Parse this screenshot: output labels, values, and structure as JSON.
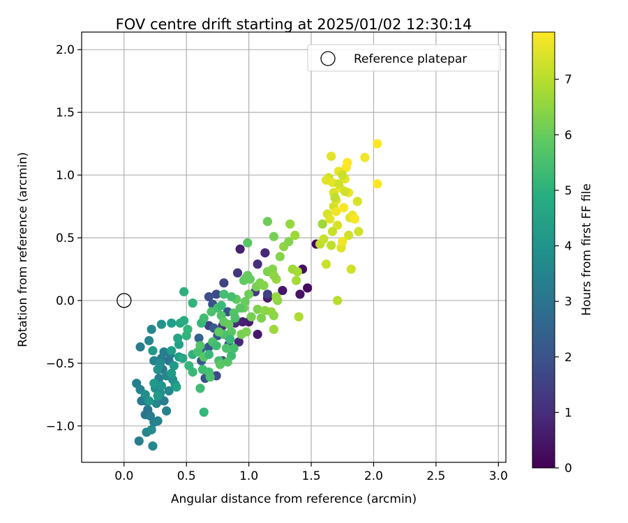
{
  "chart_data": {
    "type": "scatter",
    "title": "FOV centre drift starting at 2025/01/02 12:30:14",
    "xlabel": "Angular distance from reference (arcmin)",
    "ylabel": "Rotation from reference (arcmin)",
    "xlim": [
      -0.34,
      3.06
    ],
    "ylim": [
      -1.29,
      2.14
    ],
    "xticks": [
      0.0,
      0.5,
      1.0,
      1.5,
      2.0,
      2.5,
      3.0
    ],
    "yticks": [
      -1.0,
      -0.5,
      0.0,
      0.5,
      1.0,
      1.5,
      2.0
    ],
    "xtick_labels": [
      "0.0",
      "0.5",
      "1.0",
      "1.5",
      "2.0",
      "2.5",
      "3.0"
    ],
    "ytick_labels": [
      "−1.0",
      "−0.5",
      "0.0",
      "0.5",
      "1.0",
      "1.5",
      "2.0"
    ],
    "grid": true,
    "legend": {
      "position": "top-right",
      "label": "Reference platepar"
    },
    "reference_point": {
      "x": 0.0,
      "y": 0.0
    },
    "colorbar": {
      "label": "Hours from first FF file",
      "range": [
        0,
        7.85
      ],
      "ticks": [
        0,
        1,
        2,
        3,
        4,
        5,
        6,
        7
      ],
      "tick_labels": [
        "0",
        "1",
        "2",
        "3",
        "4",
        "5",
        "6",
        "7"
      ],
      "colormap": "viridis"
    },
    "points": [
      {
        "x": 1.54,
        "y": 0.45,
        "c": 0.2
      },
      {
        "x": 1.43,
        "y": 0.25,
        "c": 0.3
      },
      {
        "x": 1.47,
        "y": 0.1,
        "c": 0.2
      },
      {
        "x": 1.41,
        "y": 0.05,
        "c": 0.4
      },
      {
        "x": 1.27,
        "y": 0.08,
        "c": 0.5
      },
      {
        "x": 1.15,
        "y": 0.02,
        "c": 0.6
      },
      {
        "x": 1.07,
        "y": -0.27,
        "c": 0.5
      },
      {
        "x": 1.0,
        "y": -0.17,
        "c": 0.6
      },
      {
        "x": 0.95,
        "y": -0.17,
        "c": 0.7
      },
      {
        "x": 0.93,
        "y": 0.41,
        "c": 0.7
      },
      {
        "x": 1.13,
        "y": 0.38,
        "c": 0.9
      },
      {
        "x": 1.07,
        "y": 0.29,
        "c": 1.0
      },
      {
        "x": 0.91,
        "y": 0.22,
        "c": 1.2
      },
      {
        "x": 0.98,
        "y": 0.18,
        "c": 1.1
      },
      {
        "x": 0.8,
        "y": 0.14,
        "c": 1.6
      },
      {
        "x": 0.74,
        "y": 0.05,
        "c": 1.8
      },
      {
        "x": 0.68,
        "y": 0.03,
        "c": 1.9
      },
      {
        "x": 0.71,
        "y": -0.03,
        "c": 2.0
      },
      {
        "x": 0.68,
        "y": -0.2,
        "c": 1.5
      },
      {
        "x": 0.79,
        "y": -0.2,
        "c": 1.2
      },
      {
        "x": 0.83,
        "y": -0.28,
        "c": 1.3
      },
      {
        "x": 0.89,
        "y": -0.18,
        "c": 1.0
      },
      {
        "x": 0.92,
        "y": -0.33,
        "c": 0.9
      },
      {
        "x": 0.74,
        "y": -0.6,
        "c": 1.7
      },
      {
        "x": 0.65,
        "y": -0.62,
        "c": 2.0
      },
      {
        "x": 0.62,
        "y": -0.48,
        "c": 2.2
      },
      {
        "x": 0.68,
        "y": -0.37,
        "c": 2.1
      },
      {
        "x": 0.72,
        "y": -0.22,
        "c": 2.3
      },
      {
        "x": 0.75,
        "y": -0.28,
        "c": 2.1
      },
      {
        "x": 0.83,
        "y": -0.09,
        "c": 2.0
      },
      {
        "x": 0.79,
        "y": -0.48,
        "c": 1.9
      },
      {
        "x": 0.84,
        "y": -0.35,
        "c": 1.8
      },
      {
        "x": 1.05,
        "y": 0.07,
        "c": 1.3
      },
      {
        "x": 1.15,
        "y": 0.05,
        "c": 1.5
      },
      {
        "x": 0.6,
        "y": -0.3,
        "c": 2.5
      },
      {
        "x": 0.62,
        "y": -0.38,
        "c": 2.6
      },
      {
        "x": 0.1,
        "y": -0.66,
        "c": 3.4
      },
      {
        "x": 0.13,
        "y": -0.71,
        "c": 3.5
      },
      {
        "x": 0.17,
        "y": -0.8,
        "c": 3.3
      },
      {
        "x": 0.14,
        "y": -0.8,
        "c": 3.2
      },
      {
        "x": 0.19,
        "y": -0.87,
        "c": 3.1
      },
      {
        "x": 0.17,
        "y": -0.91,
        "c": 3.0
      },
      {
        "x": 0.21,
        "y": -0.92,
        "c": 3.3
      },
      {
        "x": 0.24,
        "y": -0.97,
        "c": 3.4
      },
      {
        "x": 0.27,
        "y": -0.96,
        "c": 3.5
      },
      {
        "x": 0.18,
        "y": -1.05,
        "c": 3.6
      },
      {
        "x": 0.22,
        "y": -1.03,
        "c": 3.8
      },
      {
        "x": 0.12,
        "y": -1.12,
        "c": 3.4
      },
      {
        "x": 0.23,
        "y": -1.16,
        "c": 3.7
      },
      {
        "x": 0.26,
        "y": -0.82,
        "c": 3.6
      },
      {
        "x": 0.29,
        "y": -0.74,
        "c": 3.8
      },
      {
        "x": 0.25,
        "y": -0.7,
        "c": 3.9
      },
      {
        "x": 0.32,
        "y": -0.8,
        "c": 3.4
      },
      {
        "x": 0.34,
        "y": -0.88,
        "c": 3.5
      },
      {
        "x": 0.36,
        "y": -0.72,
        "c": 3.7
      },
      {
        "x": 0.28,
        "y": -0.62,
        "c": 3.4
      },
      {
        "x": 0.31,
        "y": -0.55,
        "c": 3.3
      },
      {
        "x": 0.34,
        "y": -0.6,
        "c": 3.6
      },
      {
        "x": 0.39,
        "y": -0.63,
        "c": 3.9
      },
      {
        "x": 0.41,
        "y": -0.67,
        "c": 4.0
      },
      {
        "x": 0.24,
        "y": -0.48,
        "c": 3.5
      },
      {
        "x": 0.3,
        "y": -0.46,
        "c": 3.3
      },
      {
        "x": 0.36,
        "y": -0.48,
        "c": 3.1
      },
      {
        "x": 0.32,
        "y": -0.41,
        "c": 3.4
      },
      {
        "x": 0.37,
        "y": -0.43,
        "c": 3.2
      },
      {
        "x": 0.2,
        "y": -0.32,
        "c": 3.6
      },
      {
        "x": 0.13,
        "y": -0.37,
        "c": 3.3
      },
      {
        "x": 0.22,
        "y": -0.23,
        "c": 3.7
      },
      {
        "x": 0.3,
        "y": -0.19,
        "c": 4.0
      },
      {
        "x": 0.38,
        "y": -0.18,
        "c": 4.4
      },
      {
        "x": 0.24,
        "y": -0.66,
        "c": 4.2
      },
      {
        "x": 0.17,
        "y": -0.75,
        "c": 3.9
      },
      {
        "x": 0.2,
        "y": -0.8,
        "c": 4.1
      },
      {
        "x": 0.27,
        "y": -0.76,
        "c": 4.3
      },
      {
        "x": 0.3,
        "y": -0.68,
        "c": 4.1
      },
      {
        "x": 0.42,
        "y": -0.69,
        "c": 4.5
      },
      {
        "x": 0.38,
        "y": -0.58,
        "c": 4.3
      },
      {
        "x": 0.4,
        "y": -0.52,
        "c": 4.2
      },
      {
        "x": 0.27,
        "y": -0.55,
        "c": 4.0
      },
      {
        "x": 0.29,
        "y": -0.5,
        "c": 3.8
      },
      {
        "x": 0.44,
        "y": -0.35,
        "c": 4.5
      },
      {
        "x": 0.43,
        "y": -0.3,
        "c": 4.6
      },
      {
        "x": 0.45,
        "y": -0.18,
        "c": 4.7
      },
      {
        "x": 0.48,
        "y": -0.16,
        "c": 4.8
      },
      {
        "x": 0.44,
        "y": -0.45,
        "c": 4.4
      },
      {
        "x": 0.47,
        "y": -0.46,
        "c": 4.7
      },
      {
        "x": 0.38,
        "y": -0.4,
        "c": 4.4
      },
      {
        "x": 0.23,
        "y": -0.4,
        "c": 4.2
      },
      {
        "x": 0.48,
        "y": 0.07,
        "c": 5.0
      },
      {
        "x": 0.55,
        "y": -0.02,
        "c": 5.1
      },
      {
        "x": 0.51,
        "y": -0.23,
        "c": 5.2
      },
      {
        "x": 0.5,
        "y": -0.28,
        "c": 5.1
      },
      {
        "x": 0.55,
        "y": -0.43,
        "c": 5.0
      },
      {
        "x": 0.52,
        "y": -0.52,
        "c": 5.2
      },
      {
        "x": 0.55,
        "y": -0.57,
        "c": 5.3
      },
      {
        "x": 0.61,
        "y": -0.7,
        "c": 5.4
      },
      {
        "x": 0.64,
        "y": -0.89,
        "c": 5.2
      },
      {
        "x": 0.63,
        "y": -0.55,
        "c": 5.4
      },
      {
        "x": 0.68,
        "y": -0.57,
        "c": 5.5
      },
      {
        "x": 0.69,
        "y": -0.61,
        "c": 5.6
      },
      {
        "x": 0.59,
        "y": -0.41,
        "c": 5.5
      },
      {
        "x": 0.61,
        "y": -0.36,
        "c": 5.7
      },
      {
        "x": 0.64,
        "y": -0.45,
        "c": 5.8
      },
      {
        "x": 0.68,
        "y": -0.43,
        "c": 5.3
      },
      {
        "x": 0.71,
        "y": -0.33,
        "c": 5.6
      },
      {
        "x": 0.74,
        "y": -0.36,
        "c": 5.4
      },
      {
        "x": 0.62,
        "y": -0.18,
        "c": 5.2
      },
      {
        "x": 0.64,
        "y": -0.14,
        "c": 5.4
      },
      {
        "x": 0.7,
        "y": -0.09,
        "c": 5.6
      },
      {
        "x": 0.75,
        "y": -0.06,
        "c": 5.5
      },
      {
        "x": 0.78,
        "y": -0.04,
        "c": 5.3
      },
      {
        "x": 0.8,
        "y": 0.05,
        "c": 5.5
      },
      {
        "x": 0.78,
        "y": -0.12,
        "c": 5.7
      },
      {
        "x": 0.8,
        "y": -0.17,
        "c": 5.9
      },
      {
        "x": 0.84,
        "y": -0.19,
        "c": 6.0
      },
      {
        "x": 0.86,
        "y": -0.25,
        "c": 5.8
      },
      {
        "x": 0.8,
        "y": -0.27,
        "c": 5.6
      },
      {
        "x": 0.76,
        "y": -0.25,
        "c": 5.9
      },
      {
        "x": 0.82,
        "y": -0.38,
        "c": 5.6
      },
      {
        "x": 0.86,
        "y": -0.44,
        "c": 5.4
      },
      {
        "x": 0.83,
        "y": -0.49,
        "c": 5.7
      },
      {
        "x": 0.76,
        "y": -0.48,
        "c": 5.5
      },
      {
        "x": 0.77,
        "y": -0.51,
        "c": 5.8
      },
      {
        "x": 0.88,
        "y": -0.1,
        "c": 5.7
      },
      {
        "x": 0.9,
        "y": 0.01,
        "c": 5.9
      },
      {
        "x": 0.86,
        "y": 0.03,
        "c": 5.5
      },
      {
        "x": 0.96,
        "y": 0.16,
        "c": 5.9
      },
      {
        "x": 0.99,
        "y": 0.2,
        "c": 6.0
      },
      {
        "x": 1.01,
        "y": 0.17,
        "c": 6.0
      },
      {
        "x": 0.97,
        "y": -0.01,
        "c": 6.0
      },
      {
        "x": 0.96,
        "y": -0.06,
        "c": 6.1
      },
      {
        "x": 0.94,
        "y": -0.27,
        "c": 6.2
      },
      {
        "x": 0.98,
        "y": -0.25,
        "c": 6.3
      },
      {
        "x": 1.02,
        "y": -0.13,
        "c": 6.2
      },
      {
        "x": 1.1,
        "y": -0.14,
        "c": 6.3
      },
      {
        "x": 1.07,
        "y": -0.07,
        "c": 6.3
      },
      {
        "x": 1.0,
        "y": 0.05,
        "c": 6.1
      },
      {
        "x": 1.06,
        "y": 0.11,
        "c": 6.2
      },
      {
        "x": 1.09,
        "y": 0.14,
        "c": 6.3
      },
      {
        "x": 1.12,
        "y": 0.12,
        "c": 6.4
      },
      {
        "x": 1.15,
        "y": 0.23,
        "c": 6.3
      },
      {
        "x": 1.19,
        "y": 0.25,
        "c": 6.4
      },
      {
        "x": 1.22,
        "y": 0.17,
        "c": 6.6
      },
      {
        "x": 1.2,
        "y": 0.2,
        "c": 6.5
      },
      {
        "x": 1.23,
        "y": 0.0,
        "c": 6.5
      },
      {
        "x": 1.22,
        "y": 0.03,
        "c": 6.6
      },
      {
        "x": 1.18,
        "y": -0.09,
        "c": 6.6
      },
      {
        "x": 1.2,
        "y": -0.12,
        "c": 6.5
      },
      {
        "x": 1.2,
        "y": -0.23,
        "c": 6.7
      },
      {
        "x": 1.13,
        "y": -0.08,
        "c": 6.5
      },
      {
        "x": 0.99,
        "y": 0.46,
        "c": 5.8
      },
      {
        "x": 1.15,
        "y": 0.63,
        "c": 6.1
      },
      {
        "x": 1.2,
        "y": 0.51,
        "c": 6.2
      },
      {
        "x": 1.25,
        "y": 0.35,
        "c": 6.4
      },
      {
        "x": 1.28,
        "y": 0.43,
        "c": 6.5
      },
      {
        "x": 1.33,
        "y": 0.61,
        "c": 6.6
      },
      {
        "x": 1.32,
        "y": 0.47,
        "c": 6.4
      },
      {
        "x": 1.37,
        "y": 0.52,
        "c": 6.7
      },
      {
        "x": 1.35,
        "y": 0.25,
        "c": 6.7
      },
      {
        "x": 1.39,
        "y": 0.23,
        "c": 6.8
      },
      {
        "x": 1.38,
        "y": 0.16,
        "c": 6.8
      },
      {
        "x": 1.4,
        "y": -0.13,
        "c": 6.9
      },
      {
        "x": 1.57,
        "y": 0.45,
        "c": 7.1
      },
      {
        "x": 1.59,
        "y": 0.61,
        "c": 6.7
      },
      {
        "x": 0.85,
        "y": -0.31,
        "c": 5.3
      },
      {
        "x": 0.88,
        "y": -0.38,
        "c": 5.5
      },
      {
        "x": 0.89,
        "y": -0.14,
        "c": 5.6
      },
      {
        "x": 0.93,
        "y": -0.06,
        "c": 5.8
      },
      {
        "x": 1.62,
        "y": 0.29,
        "c": 7.2
      },
      {
        "x": 1.6,
        "y": 0.49,
        "c": 7.2
      },
      {
        "x": 1.63,
        "y": 0.69,
        "c": 7.4
      },
      {
        "x": 1.64,
        "y": 0.98,
        "c": 7.3
      },
      {
        "x": 1.66,
        "y": 1.15,
        "c": 7.5
      },
      {
        "x": 1.67,
        "y": 0.94,
        "c": 7.6
      },
      {
        "x": 1.65,
        "y": 0.65,
        "c": 7.5
      },
      {
        "x": 1.66,
        "y": 0.44,
        "c": 7.1
      },
      {
        "x": 1.68,
        "y": 0.75,
        "c": 7.3
      },
      {
        "x": 1.68,
        "y": 0.86,
        "c": 7.4
      },
      {
        "x": 1.7,
        "y": 0.8,
        "c": 7.5
      },
      {
        "x": 1.72,
        "y": 1.03,
        "c": 7.6
      },
      {
        "x": 1.7,
        "y": 0.71,
        "c": 7.7
      },
      {
        "x": 1.73,
        "y": 0.9,
        "c": 7.6
      },
      {
        "x": 1.71,
        "y": 0.6,
        "c": 7.4
      },
      {
        "x": 1.74,
        "y": 0.42,
        "c": 7.5
      },
      {
        "x": 1.75,
        "y": 0.47,
        "c": 7.7
      },
      {
        "x": 1.76,
        "y": 0.74,
        "c": 7.8
      },
      {
        "x": 1.77,
        "y": 0.97,
        "c": 7.6
      },
      {
        "x": 1.78,
        "y": 1.06,
        "c": 7.8
      },
      {
        "x": 1.79,
        "y": 1.1,
        "c": 7.9
      },
      {
        "x": 1.8,
        "y": 0.86,
        "c": 7.7
      },
      {
        "x": 1.81,
        "y": 0.66,
        "c": 7.5
      },
      {
        "x": 1.8,
        "y": 0.52,
        "c": 7.3
      },
      {
        "x": 1.83,
        "y": 0.68,
        "c": 7.6
      },
      {
        "x": 1.85,
        "y": 0.65,
        "c": 7.8
      },
      {
        "x": 1.82,
        "y": 0.25,
        "c": 7.3
      },
      {
        "x": 1.87,
        "y": 0.79,
        "c": 7.4
      },
      {
        "x": 1.88,
        "y": 0.55,
        "c": 7.3
      },
      {
        "x": 1.93,
        "y": 1.14,
        "c": 7.7
      },
      {
        "x": 2.03,
        "y": 1.25,
        "c": 7.9
      },
      {
        "x": 2.03,
        "y": 0.93,
        "c": 7.9
      },
      {
        "x": 1.71,
        "y": 0.0,
        "c": 7.0
      },
      {
        "x": 1.67,
        "y": 0.55,
        "c": 7.2
      },
      {
        "x": 1.69,
        "y": 0.82,
        "c": 7.1
      },
      {
        "x": 1.72,
        "y": 0.93,
        "c": 7.3
      },
      {
        "x": 1.77,
        "y": 0.87,
        "c": 7.3
      },
      {
        "x": 1.75,
        "y": 1.0,
        "c": 7.2
      },
      {
        "x": 1.62,
        "y": 0.96,
        "c": 7.5
      }
    ]
  }
}
